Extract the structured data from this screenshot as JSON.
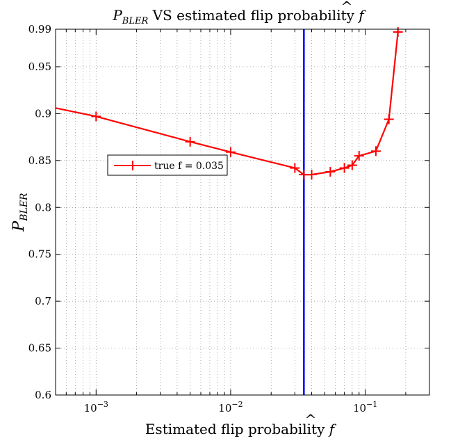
{
  "chart_data": {
    "type": "line",
    "title": {
      "symbol": "P",
      "subscript": "BLER",
      "rest": " VS estimated flip probability ",
      "hat_symbol": "f"
    },
    "xlabel": {
      "text": "Estimated flip probability ",
      "hat_symbol": "f"
    },
    "ylabel": {
      "symbol": "P",
      "subscript": "BLER"
    },
    "x_scale": "log",
    "xlim": [
      0.0005,
      0.3
    ],
    "ylim": [
      0.6,
      0.99
    ],
    "grid": true,
    "x_ticks": [
      {
        "value": 0.001,
        "base": "10",
        "exp": "−3"
      },
      {
        "value": 0.01,
        "base": "10",
        "exp": "−2"
      },
      {
        "value": 0.1,
        "base": "10",
        "exp": "−1"
      }
    ],
    "y_ticks": [
      {
        "value": 0.6,
        "label": "0.6"
      },
      {
        "value": 0.65,
        "label": "0.65"
      },
      {
        "value": 0.7,
        "label": "0.7"
      },
      {
        "value": 0.75,
        "label": "0.75"
      },
      {
        "value": 0.8,
        "label": "0.8"
      },
      {
        "value": 0.85,
        "label": "0.85"
      },
      {
        "value": 0.9,
        "label": "0.9"
      },
      {
        "value": 0.95,
        "label": "0.95"
      },
      {
        "value": 0.99,
        "label": "0.99"
      }
    ],
    "series": [
      {
        "name": "true f = 0.035",
        "color": "#ff0000",
        "marker": "plus",
        "x": [
          0.0005,
          0.001,
          0.005,
          0.01,
          0.03,
          0.035,
          0.04,
          0.055,
          0.07,
          0.08,
          0.09,
          0.12,
          0.15,
          0.175
        ],
        "y": [
          0.906,
          0.897,
          0.87,
          0.859,
          0.842,
          0.835,
          0.835,
          0.838,
          0.842,
          0.845,
          0.855,
          0.86,
          0.894,
          0.987
        ],
        "marker_mask": [
          false,
          true,
          true,
          true,
          true,
          true,
          true,
          true,
          true,
          true,
          true,
          true,
          true,
          true
        ]
      }
    ],
    "vertical_line": {
      "x": 0.035,
      "color": "#0000ff"
    },
    "legend": {
      "position": "middle-left",
      "label": "true f = 0.035"
    }
  }
}
